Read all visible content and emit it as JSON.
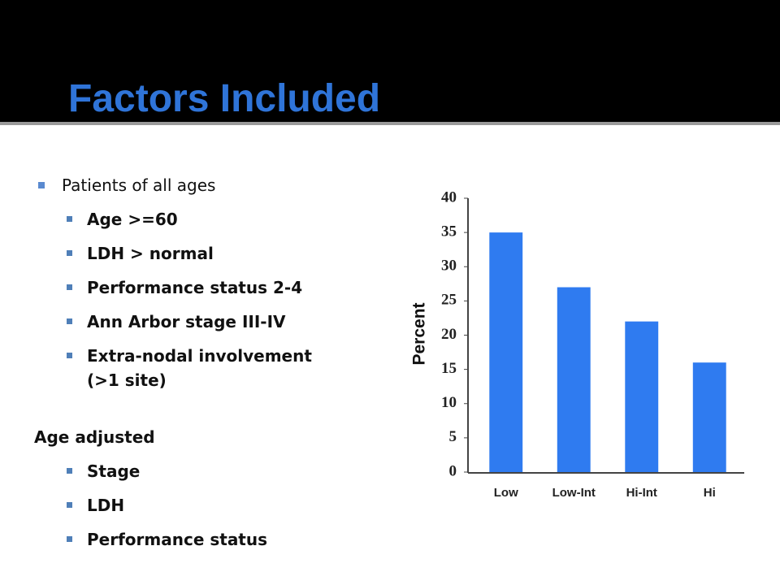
{
  "title": "Factors Included",
  "sections": [
    {
      "heading": "Patients of all ages",
      "items": [
        "Age >=60",
        "LDH > normal",
        "Performance status 2-4",
        "Ann Arbor stage III-IV",
        "Extra-nodal involvement (>1 site)"
      ]
    },
    {
      "heading": "Age adjusted",
      "items": [
        "Stage",
        "LDH",
        "Performance status"
      ]
    }
  ],
  "chart_data": {
    "type": "bar",
    "ylabel": "Percent",
    "categories": [
      "Low",
      "Low-Int",
      "Hi-Int",
      "Hi"
    ],
    "values": [
      35,
      27,
      22,
      16
    ],
    "color": "#2f7bf0",
    "ylim": [
      0,
      40
    ],
    "yticks": [
      0,
      5,
      10,
      15,
      20,
      25,
      30,
      35,
      40
    ],
    "grid": false
  }
}
